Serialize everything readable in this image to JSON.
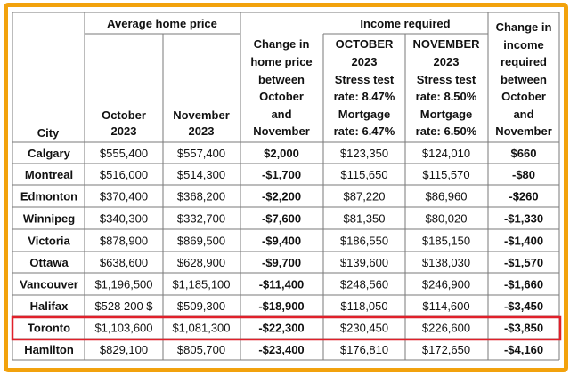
{
  "table": {
    "headers": {
      "city": "City",
      "avg_price_group": "Average home price",
      "income_group": "Income required",
      "oct_2023": [
        "October",
        "2023"
      ],
      "nov_2023": [
        "November",
        "2023"
      ],
      "change_price": [
        "Change in",
        "home price",
        "between",
        "October",
        "and",
        "November"
      ],
      "oct_income": [
        "OCTOBER",
        "2023",
        "Stress test",
        "rate: 8.47%",
        "Mortgage",
        "rate: 6.47%"
      ],
      "nov_income": [
        "NOVEMBER",
        "2023",
        "Stress test",
        "rate: 8.50%",
        "Mortgage",
        "rate: 6.50%"
      ],
      "change_income": [
        "Change in",
        "income",
        "required",
        "between",
        "October",
        "and",
        "November"
      ]
    },
    "rows": [
      {
        "city": "Calgary",
        "oct": "$555,400",
        "nov": "$557,400",
        "change": "$2,000",
        "inc_oct": "$123,350",
        "inc_nov": "$124,010",
        "inc_change": "$660"
      },
      {
        "city": "Montreal",
        "oct": "$516,000",
        "nov": "$514,300",
        "change": "-$1,700",
        "inc_oct": "$115,650",
        "inc_nov": "$115,570",
        "inc_change": "-$80"
      },
      {
        "city": "Edmonton",
        "oct": "$370,400",
        "nov": "$368,200",
        "change": "-$2,200",
        "inc_oct": "$87,220",
        "inc_nov": "$86,960",
        "inc_change": "-$260"
      },
      {
        "city": "Winnipeg",
        "oct": "$340,300",
        "nov": "$332,700",
        "change": "-$7,600",
        "inc_oct": "$81,350",
        "inc_nov": "$80,020",
        "inc_change": "-$1,330"
      },
      {
        "city": "Victoria",
        "oct": "$878,900",
        "nov": "$869,500",
        "change": "-$9,400",
        "inc_oct": "$186,550",
        "inc_nov": "$185,150",
        "inc_change": "-$1,400"
      },
      {
        "city": "Ottawa",
        "oct": "$638,600",
        "nov": "$628,900",
        "change": "-$9,700",
        "inc_oct": "$139,600",
        "inc_nov": "$138,030",
        "inc_change": "-$1,570"
      },
      {
        "city": "Vancouver",
        "oct": "$1,196,500",
        "nov": "$1,185,100",
        "change": "-$11,400",
        "inc_oct": "$248,560",
        "inc_nov": "$246,900",
        "inc_change": "-$1,660"
      },
      {
        "city": "Halifax",
        "oct": "$528 200 $",
        "nov": "$509,300",
        "change": "-$18,900",
        "inc_oct": "$118,050",
        "inc_nov": "$114,600",
        "inc_change": "-$3,450"
      },
      {
        "city": "Toronto",
        "oct": "$1,103,600",
        "nov": "$1,081,300",
        "change": "-$22,300",
        "inc_oct": "$230,450",
        "inc_nov": "$226,600",
        "inc_change": "-$3,850"
      },
      {
        "city": "Hamilton",
        "oct": "$829,100",
        "nov": "$805,700",
        "change": "-$23,400",
        "inc_oct": "$176,810",
        "inc_nov": "$172,650",
        "inc_change": "-$4,160"
      }
    ],
    "highlighted_row": "Toronto",
    "colors": {
      "frame": "#f2a20d",
      "highlight": "#e0202a",
      "grid": "#7a7a7a"
    }
  }
}
